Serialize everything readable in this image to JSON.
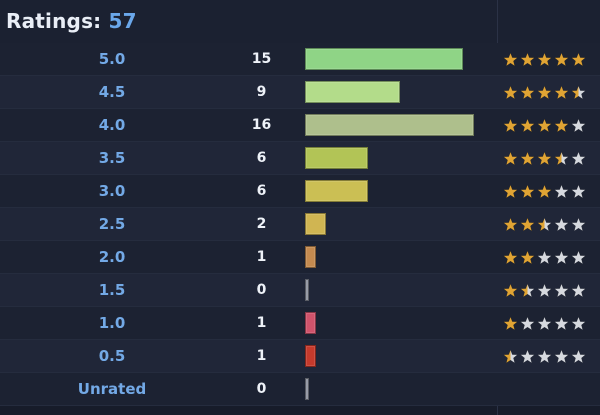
{
  "header": {
    "label": "Ratings:",
    "total": "57"
  },
  "colors": {
    "star_gold": "#e0a434",
    "star_silver": "#d6d9df",
    "rating_text": "#73a9e6"
  },
  "rows": [
    {
      "rating": "5.0",
      "count": "15",
      "fraction": 0.849,
      "color": "#8fd486",
      "stars": 5.0
    },
    {
      "rating": "4.5",
      "count": "9",
      "fraction": 0.509,
      "color": "#b3dc8a",
      "stars": 4.5
    },
    {
      "rating": "4.0",
      "count": "16",
      "fraction": 0.906,
      "color": "#aebf8c",
      "stars": 4.0
    },
    {
      "rating": "3.5",
      "count": "6",
      "fraction": 0.34,
      "color": "#b2c456",
      "stars": 3.5
    },
    {
      "rating": "3.0",
      "count": "6",
      "fraction": 0.34,
      "color": "#cbbf54",
      "stars": 3.0
    },
    {
      "rating": "2.5",
      "count": "2",
      "fraction": 0.113,
      "color": "#d0b552",
      "stars": 2.5
    },
    {
      "rating": "2.0",
      "count": "1",
      "fraction": 0.057,
      "color": "#c48a4f",
      "stars": 2.0
    },
    {
      "rating": "1.5",
      "count": "0",
      "fraction": 0.0,
      "color": "#8a8f9c",
      "stars": 1.5
    },
    {
      "rating": "1.0",
      "count": "1",
      "fraction": 0.057,
      "color": "#d0536b",
      "stars": 1.0
    },
    {
      "rating": "0.5",
      "count": "1",
      "fraction": 0.057,
      "color": "#c63a2c",
      "stars": 0.5
    },
    {
      "rating": "Unrated",
      "count": "0",
      "fraction": 0.0,
      "color": "#8a8f9c",
      "stars": null
    }
  ]
}
